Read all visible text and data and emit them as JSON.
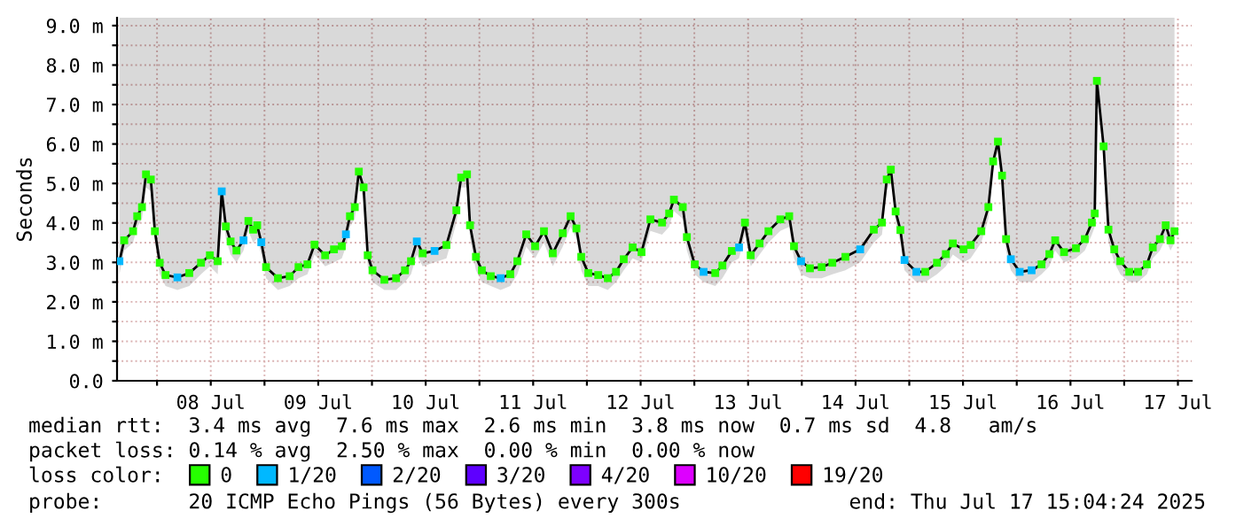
{
  "chart_data": {
    "type": "line",
    "ylabel": "Seconds",
    "legend_title": "loss color:",
    "legend": "bottom",
    "grid": true,
    "marker": "none",
    "line_style": "solid",
    "xlim": [
      "2025-07-07T15:04",
      "2025-07-17T15:04"
    ],
    "xticks": [
      {
        "value": "2025-07-08T00:00",
        "label": null
      },
      {
        "value": "2025-07-08T12:00",
        "label": "08 Jul"
      },
      {
        "value": "2025-07-09T00:00",
        "label": null
      },
      {
        "value": "2025-07-09T12:00",
        "label": "09 Jul"
      },
      {
        "value": "2025-07-10T00:00",
        "label": null
      },
      {
        "value": "2025-07-10T12:00",
        "label": "10 Jul"
      },
      {
        "value": "2025-07-11T00:00",
        "label": null
      },
      {
        "value": "2025-07-11T12:00",
        "label": "11 Jul"
      },
      {
        "value": "2025-07-12T00:00",
        "label": null
      },
      {
        "value": "2025-07-12T12:00",
        "label": "12 Jul"
      },
      {
        "value": "2025-07-13T00:00",
        "label": null
      },
      {
        "value": "2025-07-13T12:00",
        "label": "13 Jul"
      },
      {
        "value": "2025-07-14T00:00",
        "label": null
      },
      {
        "value": "2025-07-14T12:00",
        "label": "14 Jul"
      },
      {
        "value": "2025-07-15T00:00",
        "label": null
      },
      {
        "value": "2025-07-15T12:00",
        "label": "15 Jul"
      },
      {
        "value": "2025-07-16T00:00",
        "label": null
      },
      {
        "value": "2025-07-16T12:00",
        "label": "16 Jul"
      },
      {
        "value": "2025-07-17T00:00",
        "label": null
      },
      {
        "value": "2025-07-17T12:00",
        "label": "17 Jul"
      }
    ],
    "ylim": [
      0,
      9.2
    ],
    "yticks": [
      {
        "value": 0,
        "label": "0.0"
      },
      {
        "value": 0.5,
        "label": null
      },
      {
        "value": 1,
        "label": "1.0 m"
      },
      {
        "value": 1.5,
        "label": null
      },
      {
        "value": 2,
        "label": "2.0 m"
      },
      {
        "value": 2.5,
        "label": null
      },
      {
        "value": 3,
        "label": "3.0 m"
      },
      {
        "value": 3.5,
        "label": null
      },
      {
        "value": 4,
        "label": "4.0 m"
      },
      {
        "value": 4.5,
        "label": null
      },
      {
        "value": 5,
        "label": "5.0 m"
      },
      {
        "value": 5.5,
        "label": null
      },
      {
        "value": 6,
        "label": "6.0 m"
      },
      {
        "value": 6.5,
        "label": null
      },
      {
        "value": 7,
        "label": "7.0 m"
      },
      {
        "value": 7.5,
        "label": null
      },
      {
        "value": 8,
        "label": "8.0 m"
      },
      {
        "value": 8.5,
        "label": null
      },
      {
        "value": 9,
        "label": "9.0 m"
      }
    ],
    "annotations": [
      "median rtt:  3.4 ms avg  7.6 ms max  2.6 ms min  3.8 ms now  0.7 ms sd  4.8   am/s",
      "packet loss: 0.14 % avg  2.50 % max  0.00 % min  0.00 % now",
      "probe:       20 ICMP Echo Pings (56 Bytes) every 300s",
      "end: Thu Jul 17 15:04:24 2025"
    ],
    "x": [
      "2025-07-07T15:36",
      "2025-07-07T16:40",
      "2025-07-07T18:39",
      "2025-07-07T19:34",
      "2025-07-07T20:38",
      "2025-07-07T21:32",
      "2025-07-07T22:37",
      "2025-07-07T23:31",
      "2025-07-08T00:36",
      "2025-07-08T01:54",
      "2025-07-08T04:33",
      "2025-07-08T07:12",
      "2025-07-08T09:49",
      "2025-07-08T11:48",
      "2025-07-08T13:33",
      "2025-07-08T14:27",
      "2025-07-08T15:22",
      "2025-07-08T16:26",
      "2025-07-08T17:44",
      "2025-07-08T19:19",
      "2025-07-08T20:24",
      "2025-07-08T21:28",
      "2025-07-08T22:22",
      "2025-07-08T23:17",
      "2025-07-09T00:21",
      "2025-07-09T03:00",
      "2025-07-09T05:37",
      "2025-07-09T07:36",
      "2025-07-09T09:35",
      "2025-07-09T11:10",
      "2025-07-09T13:33",
      "2025-07-09T15:31",
      "2025-07-09T17:16",
      "2025-07-09T18:11",
      "2025-07-09T19:05",
      "2025-07-09T20:10",
      "2025-07-09T21:04",
      "2025-07-09T22:08",
      "2025-07-09T23:03",
      "2025-07-10T00:07",
      "2025-07-10T02:46",
      "2025-07-10T05:23",
      "2025-07-10T07:22",
      "2025-07-10T08:43",
      "2025-07-10T10:01",
      "2025-07-10T11:20",
      "2025-07-10T13:59",
      "2025-07-10T16:38",
      "2025-07-10T18:51",
      "2025-07-10T19:55",
      "2025-07-10T21:14",
      "2025-07-10T21:54",
      "2025-07-10T23:13",
      "2025-07-11T00:33",
      "2025-07-11T02:32",
      "2025-07-11T04:45",
      "2025-07-11T06:53",
      "2025-07-11T08:28",
      "2025-07-11T10:27",
      "2025-07-11T12:26",
      "2025-07-11T14:25",
      "2025-07-11T16:23",
      "2025-07-11T18:37",
      "2025-07-11T20:22",
      "2025-07-11T21:40",
      "2025-07-11T22:44",
      "2025-07-12T00:19",
      "2025-07-12T02:32",
      "2025-07-12T04:40",
      "2025-07-12T06:30",
      "2025-07-12T08:14",
      "2025-07-12T10:13",
      "2025-07-12T12:12",
      "2025-07-12T14:11",
      "2025-07-12T16:47",
      "2025-07-12T18:22",
      "2025-07-12T19:26",
      "2025-07-12T21:25",
      "2025-07-12T22:20",
      "2025-07-13T00:05",
      "2025-07-13T02:04",
      "2025-07-13T04:40",
      "2025-07-13T06:16",
      "2025-07-13T08:23",
      "2025-07-13T09:59",
      "2025-07-13T11:17",
      "2025-07-13T12:35",
      "2025-07-13T14:34",
      "2025-07-13T16:33",
      "2025-07-13T19:12",
      "2025-07-13T21:11",
      "2025-07-13T22:15",
      "2025-07-13T23:50",
      "2025-07-14T01:49",
      "2025-07-14T04:26",
      "2025-07-14T06:49",
      "2025-07-14T09:44",
      "2025-07-14T13:02",
      "2025-07-14T16:05",
      "2025-07-14T17:54",
      "2025-07-14T18:58",
      "2025-07-14T19:53",
      "2025-07-14T20:57",
      "2025-07-14T22:01",
      "2025-07-14T22:56",
      "2025-07-15T01:35",
      "2025-07-15T03:34",
      "2025-07-15T06:11",
      "2025-07-15T08:10",
      "2025-07-15T09:44",
      "2025-07-15T12:07",
      "2025-07-15T13:42",
      "2025-07-15T16:05",
      "2025-07-15T17:40",
      "2025-07-15T18:44",
      "2025-07-15T19:48",
      "2025-07-15T20:43",
      "2025-07-15T21:37",
      "2025-07-15T22:41",
      "2025-07-16T00:40",
      "2025-07-16T03:19",
      "2025-07-16T05:32",
      "2025-07-16T07:17",
      "2025-07-16T08:35",
      "2025-07-16T10:34",
      "2025-07-16T13:13",
      "2025-07-16T15:12",
      "2025-07-16T16:47",
      "2025-07-16T17:25",
      "2025-07-16T17:54",
      "2025-07-16T19:24",
      "2025-07-16T20:29",
      "2025-07-16T21:47",
      "2025-07-16T23:08",
      "2025-07-17T01:07",
      "2025-07-17T03:05",
      "2025-07-17T05:04",
      "2025-07-17T06:23",
      "2025-07-17T07:58",
      "2025-07-17T09:16",
      "2025-07-17T10:20",
      "2025-07-17T11:14"
    ],
    "series": [
      {
        "color": "#000000",
        "values": [
          3.03,
          3.56,
          3.79,
          4.17,
          4.4,
          5.23,
          5.1,
          3.79,
          2.99,
          2.68,
          2.62,
          2.73,
          2.99,
          3.18,
          3.03,
          4.8,
          3.91,
          3.53,
          3.3,
          3.56,
          4.05,
          3.83,
          3.94,
          3.51,
          2.88,
          2.6,
          2.65,
          2.88,
          2.95,
          3.45,
          3.18,
          3.33,
          3.41,
          3.71,
          4.17,
          4.4,
          5.3,
          4.9,
          3.18,
          2.8,
          2.56,
          2.6,
          2.8,
          3.03,
          3.53,
          3.23,
          3.29,
          3.44,
          4.32,
          5.15,
          5.23,
          3.94,
          3.14,
          2.8,
          2.65,
          2.6,
          2.7,
          3.03,
          3.71,
          3.41,
          3.79,
          3.23,
          3.74,
          4.17,
          3.86,
          3.14,
          2.73,
          2.68,
          2.6,
          2.76,
          3.08,
          3.38,
          3.26,
          4.09,
          4.01,
          4.24,
          4.59,
          4.4,
          3.64,
          2.95,
          2.76,
          2.73,
          2.92,
          3.29,
          3.38,
          4.01,
          3.18,
          3.48,
          3.79,
          4.09,
          4.17,
          3.41,
          3.03,
          2.85,
          2.88,
          2.99,
          3.14,
          3.33,
          3.83,
          4.01,
          5.1,
          5.35,
          4.29,
          3.82,
          3.06,
          2.76,
          2.76,
          2.99,
          3.21,
          3.48,
          3.33,
          3.44,
          3.79,
          4.4,
          5.56,
          6.06,
          5.2,
          3.59,
          3.08,
          2.76,
          2.8,
          2.95,
          3.21,
          3.56,
          3.26,
          3.36,
          3.59,
          4.01,
          4.24,
          7.6,
          5.94,
          3.83,
          3.33,
          3.03,
          2.76,
          2.76,
          2.95,
          3.38,
          3.59,
          3.94,
          3.56,
          3.79
        ],
        "lower": [
          2.7,
          3.3,
          3.5,
          3.9,
          4.1,
          4.9,
          4.8,
          3.5,
          2.7,
          2.4,
          2.3,
          2.4,
          2.7,
          2.9,
          2.7,
          4.5,
          3.6,
          3.2,
          3.0,
          3.3,
          3.8,
          3.5,
          3.6,
          3.2,
          2.6,
          2.3,
          2.4,
          2.6,
          2.7,
          3.2,
          2.9,
          3.0,
          3.1,
          3.4,
          3.9,
          4.1,
          5.0,
          4.6,
          2.9,
          2.5,
          2.3,
          2.3,
          2.5,
          2.7,
          3.2,
          2.9,
          3.0,
          3.1,
          4.0,
          4.9,
          4.9,
          3.6,
          2.8,
          2.5,
          2.4,
          2.3,
          2.4,
          2.7,
          3.4,
          3.1,
          3.5,
          2.9,
          3.4,
          3.9,
          3.6,
          2.8,
          2.4,
          2.4,
          2.3,
          2.5,
          2.8,
          3.1,
          3.0,
          3.8,
          3.7,
          3.9,
          4.3,
          4.1,
          3.3,
          2.7,
          2.5,
          2.4,
          2.6,
          3.0,
          3.1,
          3.7,
          2.9,
          3.2,
          3.5,
          3.8,
          3.9,
          3.1,
          2.7,
          2.6,
          2.6,
          2.7,
          2.8,
          3.0,
          3.5,
          3.7,
          4.8,
          5.1,
          4.0,
          3.5,
          2.8,
          2.5,
          2.5,
          2.7,
          2.9,
          3.2,
          3.0,
          3.1,
          3.5,
          4.1,
          5.3,
          5.8,
          4.9,
          3.3,
          2.8,
          2.5,
          2.5,
          2.7,
          2.9,
          3.3,
          3.0,
          3.1,
          3.3,
          3.7,
          3.9,
          7.3,
          5.6,
          3.5,
          3.0,
          2.7,
          2.5,
          2.5,
          2.7,
          3.1,
          3.3,
          3.6,
          3.3,
          3.5
        ],
        "upper": [
          9.2,
          9.2,
          9.2,
          9.2,
          9.2,
          9.2,
          9.2,
          9.2,
          9.2,
          9.2,
          9.2,
          9.2,
          9.2,
          9.2,
          9.2,
          9.2,
          9.2,
          9.2,
          9.2,
          9.2,
          9.2,
          9.2,
          9.2,
          9.2,
          9.2,
          9.2,
          9.2,
          9.2,
          9.2,
          9.2,
          9.2,
          9.2,
          9.2,
          9.2,
          9.2,
          9.2,
          9.2,
          9.2,
          9.2,
          9.2,
          9.2,
          9.2,
          9.2,
          9.2,
          9.2,
          9.2,
          9.2,
          9.2,
          9.2,
          9.2,
          9.2,
          9.2,
          9.2,
          9.2,
          9.2,
          9.2,
          9.2,
          9.2,
          9.2,
          9.2,
          9.2,
          9.2,
          9.2,
          9.2,
          9.2,
          9.2,
          9.2,
          9.2,
          9.2,
          9.2,
          9.2,
          9.2,
          9.2,
          9.2,
          9.2,
          9.2,
          9.2,
          9.2,
          9.2,
          9.2,
          9.2,
          9.2,
          9.2,
          9.2,
          9.2,
          9.2,
          9.2,
          9.2,
          9.2,
          9.2,
          9.2,
          9.2,
          9.2,
          9.2,
          9.2,
          9.2,
          9.2,
          9.2,
          9.2,
          9.2,
          9.2,
          9.2,
          9.2,
          9.2,
          9.2,
          9.2,
          9.2,
          9.2,
          9.2,
          9.2,
          9.2,
          9.2,
          9.2,
          9.2,
          9.2,
          9.2,
          9.2,
          9.2,
          9.2,
          9.2,
          9.2,
          9.2,
          9.2,
          9.2,
          9.2,
          9.2,
          9.2,
          9.2,
          9.2,
          9.2,
          9.2,
          9.2,
          9.2,
          9.2,
          9.2,
          9.2,
          9.2,
          9.2,
          9.2,
          9.2,
          9.2,
          9.2
        ]
      },
      {
        "type": "scatter",
        "name": "0",
        "color": "#26ff00",
        "marker": "square",
        "values": [
          null,
          3.56,
          3.79,
          4.17,
          4.4,
          5.23,
          5.1,
          3.79,
          2.99,
          2.68,
          null,
          2.73,
          2.99,
          3.18,
          3.03,
          null,
          3.91,
          3.53,
          3.3,
          null,
          4.05,
          3.83,
          3.94,
          null,
          2.88,
          2.6,
          2.65,
          2.88,
          2.95,
          3.45,
          3.18,
          3.33,
          3.41,
          null,
          4.17,
          4.4,
          5.3,
          4.9,
          3.18,
          2.8,
          2.56,
          2.6,
          2.8,
          3.03,
          null,
          3.23,
          null,
          3.44,
          4.32,
          5.15,
          5.23,
          3.94,
          3.14,
          2.8,
          2.65,
          null,
          2.7,
          3.03,
          3.71,
          3.41,
          3.79,
          3.23,
          3.74,
          4.17,
          3.86,
          3.14,
          2.73,
          2.68,
          2.6,
          2.76,
          3.08,
          3.38,
          3.26,
          4.09,
          4.01,
          4.24,
          4.59,
          4.4,
          3.64,
          2.95,
          null,
          2.73,
          2.92,
          3.29,
          null,
          4.01,
          3.18,
          3.48,
          3.79,
          4.09,
          4.17,
          3.41,
          null,
          2.85,
          2.88,
          2.99,
          3.14,
          null,
          3.83,
          4.01,
          5.1,
          5.35,
          4.29,
          3.82,
          null,
          null,
          2.76,
          2.99,
          3.21,
          3.48,
          3.33,
          3.44,
          3.79,
          4.4,
          5.56,
          6.06,
          5.2,
          3.59,
          null,
          null,
          null,
          2.95,
          3.21,
          3.56,
          3.26,
          3.36,
          3.59,
          4.01,
          4.24,
          7.6,
          5.94,
          3.83,
          3.33,
          3.03,
          2.76,
          2.76,
          2.95,
          3.38,
          3.59,
          3.94,
          3.56,
          3.79
        ]
      },
      {
        "type": "scatter",
        "name": "1/20",
        "color": "#00b8ff",
        "marker": "square",
        "x": [
          "2025-07-07T15:36",
          "2025-07-08T04:33",
          "2025-07-08T14:27",
          "2025-07-08T19:19",
          "2025-07-08T23:17",
          "2025-07-09T18:11",
          "2025-07-10T10:01",
          "2025-07-10T13:59",
          "2025-07-11T04:45",
          "2025-07-13T02:04",
          "2025-07-13T09:59",
          "2025-07-13T23:50",
          "2025-07-14T13:02",
          "2025-07-14T22:56",
          "2025-07-15T01:35",
          "2025-07-15T22:41",
          "2025-07-16T00:40",
          "2025-07-16T03:19"
        ],
        "values": [
          3.03,
          2.62,
          4.8,
          3.56,
          3.51,
          3.71,
          3.53,
          3.29,
          2.6,
          2.76,
          3.38,
          3.03,
          3.33,
          3.06,
          2.76,
          3.08,
          2.76,
          2.8
        ]
      },
      {
        "type": "scatter",
        "name": "2/20",
        "color": "#0059ff",
        "marker": "square",
        "values": [
          null,
          null,
          null,
          null,
          null,
          null,
          null,
          null,
          null,
          null,
          null,
          null,
          null,
          null,
          null,
          null,
          null,
          null,
          null,
          null,
          null,
          null,
          null,
          null,
          null,
          null,
          null,
          null,
          null,
          null,
          null,
          null,
          null,
          null,
          null,
          null,
          null,
          null,
          null,
          null,
          null,
          null,
          null,
          null,
          null,
          null,
          null,
          null,
          null,
          null,
          null,
          null,
          null,
          null,
          null,
          null,
          null,
          null,
          null,
          null,
          null,
          null,
          null,
          null,
          null,
          null,
          null,
          null,
          null,
          null,
          null,
          null,
          null,
          null,
          null,
          null,
          null,
          null,
          null,
          null,
          null,
          null,
          null,
          null,
          null,
          null,
          null,
          null,
          null,
          null,
          null,
          null,
          null,
          null,
          null,
          null,
          null,
          null,
          null,
          null,
          null,
          null,
          null,
          null,
          null,
          null,
          null,
          null,
          null,
          null,
          null,
          null,
          null,
          null,
          null,
          null,
          null,
          null,
          null,
          null,
          null,
          null,
          null,
          null,
          null,
          null,
          null,
          null,
          null,
          null,
          null,
          null,
          null,
          null,
          null,
          null,
          null,
          null,
          null,
          null,
          null,
          null
        ]
      },
      {
        "type": "scatter",
        "name": "3/20",
        "color": "#5e00ff",
        "marker": "square",
        "values": [
          null,
          null,
          null,
          null,
          null,
          null,
          null,
          null,
          null,
          null,
          null,
          null,
          null,
          null,
          null,
          null,
          null,
          null,
          null,
          null,
          null,
          null,
          null,
          null,
          null,
          null,
          null,
          null,
          null,
          null,
          null,
          null,
          null,
          null,
          null,
          null,
          null,
          null,
          null,
          null,
          null,
          null,
          null,
          null,
          null,
          null,
          null,
          null,
          null,
          null,
          null,
          null,
          null,
          null,
          null,
          null,
          null,
          null,
          null,
          null,
          null,
          null,
          null,
          null,
          null,
          null,
          null,
          null,
          null,
          null,
          null,
          null,
          null,
          null,
          null,
          null,
          null,
          null,
          null,
          null,
          null,
          null,
          null,
          null,
          null,
          null,
          null,
          null,
          null,
          null,
          null,
          null,
          null,
          null,
          null,
          null,
          null,
          null,
          null,
          null,
          null,
          null,
          null,
          null,
          null,
          null,
          null,
          null,
          null,
          null,
          null,
          null,
          null,
          null,
          null,
          null,
          null,
          null,
          null,
          null,
          null,
          null,
          null,
          null,
          null,
          null,
          null,
          null,
          null,
          null,
          null,
          null,
          null,
          null,
          null,
          null,
          null,
          null,
          null,
          null,
          null,
          null
        ]
      },
      {
        "type": "scatter",
        "name": "4/20",
        "color": "#7e00ff",
        "marker": "square",
        "values": [
          null,
          null,
          null,
          null,
          null,
          null,
          null,
          null,
          null,
          null,
          null,
          null,
          null,
          null,
          null,
          null,
          null,
          null,
          null,
          null,
          null,
          null,
          null,
          null,
          null,
          null,
          null,
          null,
          null,
          null,
          null,
          null,
          null,
          null,
          null,
          null,
          null,
          null,
          null,
          null,
          null,
          null,
          null,
          null,
          null,
          null,
          null,
          null,
          null,
          null,
          null,
          null,
          null,
          null,
          null,
          null,
          null,
          null,
          null,
          null,
          null,
          null,
          null,
          null,
          null,
          null,
          null,
          null,
          null,
          null,
          null,
          null,
          null,
          null,
          null,
          null,
          null,
          null,
          null,
          null,
          null,
          null,
          null,
          null,
          null,
          null,
          null,
          null,
          null,
          null,
          null,
          null,
          null,
          null,
          null,
          null,
          null,
          null,
          null,
          null,
          null,
          null,
          null,
          null,
          null,
          null,
          null,
          null,
          null,
          null,
          null,
          null,
          null,
          null,
          null,
          null,
          null,
          null,
          null,
          null,
          null,
          null,
          null,
          null,
          null,
          null,
          null,
          null,
          null,
          null,
          null,
          null,
          null,
          null,
          null,
          null,
          null,
          null,
          null,
          null,
          null,
          null
        ]
      },
      {
        "type": "scatter",
        "name": "10/20",
        "color": "#dd00ff",
        "marker": "square",
        "values": [
          null,
          null,
          null,
          null,
          null,
          null,
          null,
          null,
          null,
          null,
          null,
          null,
          null,
          null,
          null,
          null,
          null,
          null,
          null,
          null,
          null,
          null,
          null,
          null,
          null,
          null,
          null,
          null,
          null,
          null,
          null,
          null,
          null,
          null,
          null,
          null,
          null,
          null,
          null,
          null,
          null,
          null,
          null,
          null,
          null,
          null,
          null,
          null,
          null,
          null,
          null,
          null,
          null,
          null,
          null,
          null,
          null,
          null,
          null,
          null,
          null,
          null,
          null,
          null,
          null,
          null,
          null,
          null,
          null,
          null,
          null,
          null,
          null,
          null,
          null,
          null,
          null,
          null,
          null,
          null,
          null,
          null,
          null,
          null,
          null,
          null,
          null,
          null,
          null,
          null,
          null,
          null,
          null,
          null,
          null,
          null,
          null,
          null,
          null,
          null,
          null,
          null,
          null,
          null,
          null,
          null,
          null,
          null,
          null,
          null,
          null,
          null,
          null,
          null,
          null,
          null,
          null,
          null,
          null,
          null,
          null,
          null,
          null,
          null,
          null,
          null,
          null,
          null,
          null,
          null,
          null,
          null,
          null,
          null,
          null,
          null,
          null,
          null,
          null,
          null,
          null,
          null
        ]
      },
      {
        "type": "scatter",
        "name": "19/20",
        "color": "#ff0000",
        "marker": "square",
        "values": [
          null,
          null,
          null,
          null,
          null,
          null,
          null,
          null,
          null,
          null,
          null,
          null,
          null,
          null,
          null,
          null,
          null,
          null,
          null,
          null,
          null,
          null,
          null,
          null,
          null,
          null,
          null,
          null,
          null,
          null,
          null,
          null,
          null,
          null,
          null,
          null,
          null,
          null,
          null,
          null,
          null,
          null,
          null,
          null,
          null,
          null,
          null,
          null,
          null,
          null,
          null,
          null,
          null,
          null,
          null,
          null,
          null,
          null,
          null,
          null,
          null,
          null,
          null,
          null,
          null,
          null,
          null,
          null,
          null,
          null,
          null,
          null,
          null,
          null,
          null,
          null,
          null,
          null,
          null,
          null,
          null,
          null,
          null,
          null,
          null,
          null,
          null,
          null,
          null,
          null,
          null,
          null,
          null,
          null,
          null,
          null,
          null,
          null,
          null,
          null,
          null,
          null,
          null,
          null,
          null,
          null,
          null,
          null,
          null,
          null,
          null,
          null,
          null,
          null,
          null,
          null,
          null,
          null,
          null,
          null,
          null,
          null,
          null,
          null,
          null,
          null,
          null,
          null,
          null,
          null,
          null,
          null,
          null,
          null,
          null,
          null,
          null,
          null,
          null,
          null,
          null,
          null
        ]
      }
    ]
  }
}
